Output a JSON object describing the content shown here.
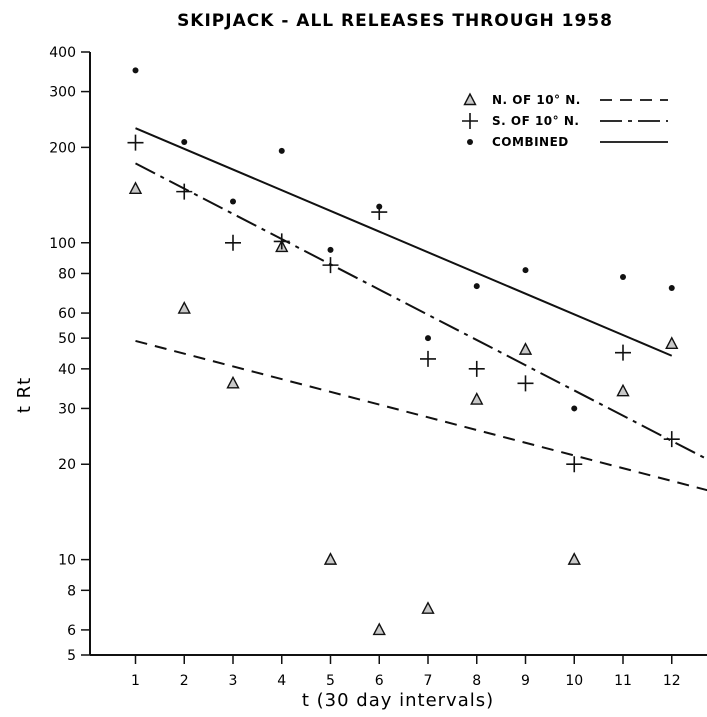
{
  "chart_data": {
    "type": "scatter",
    "title": "SKIPJACK - ALL RELEASES THROUGH 1958",
    "xlabel": "t (30 day intervals)",
    "ylabel": "t Rt",
    "xlim": [
      0,
      13.4
    ],
    "ylim": [
      5,
      400
    ],
    "y_scale": "log",
    "x_ticks": [
      1,
      2,
      3,
      4,
      5,
      6,
      7,
      8,
      9,
      10,
      11,
      12
    ],
    "y_ticks": [
      5,
      6,
      8,
      10,
      20,
      30,
      40,
      50,
      60,
      80,
      100,
      200,
      300,
      400
    ],
    "y_tick_labels": [
      "5",
      "6",
      "8",
      "10",
      "20",
      "30",
      "40",
      "50",
      "60",
      "80",
      "100",
      "200",
      "300",
      "400"
    ],
    "grid": false,
    "legend_position": "top-right",
    "series": [
      {
        "name": "N. OF 10° N.",
        "marker": "triangle",
        "line_style": "dashed",
        "points": [
          [
            1,
            148
          ],
          [
            2,
            62
          ],
          [
            3,
            36
          ],
          [
            4,
            97
          ],
          [
            5,
            10
          ],
          [
            6,
            6
          ],
          [
            7,
            7
          ],
          [
            8,
            32
          ],
          [
            9,
            46
          ],
          [
            10,
            10
          ],
          [
            11,
            34
          ],
          [
            12,
            48
          ]
        ],
        "fit_line": [
          [
            1,
            49
          ],
          [
            13.1,
            16
          ]
        ]
      },
      {
        "name": "S. OF 10° N.",
        "marker": "plus",
        "line_style": "dash-dot",
        "points": [
          [
            1,
            207
          ],
          [
            2,
            145
          ],
          [
            3,
            100
          ],
          [
            4,
            101
          ],
          [
            5,
            85
          ],
          [
            6,
            125
          ],
          [
            7,
            43
          ],
          [
            8,
            40
          ],
          [
            9,
            36
          ],
          [
            10,
            20
          ],
          [
            11,
            45
          ],
          [
            12,
            24
          ]
        ],
        "fit_line": [
          [
            1,
            178
          ],
          [
            13.5,
            18
          ]
        ]
      },
      {
        "name": "COMBINED",
        "marker": "dot",
        "line_style": "solid",
        "points": [
          [
            1,
            350
          ],
          [
            2,
            208
          ],
          [
            3,
            135
          ],
          [
            4,
            195
          ],
          [
            5,
            95
          ],
          [
            6,
            130
          ],
          [
            7,
            50
          ],
          [
            8,
            73
          ],
          [
            9,
            82
          ],
          [
            10,
            30
          ],
          [
            11,
            78
          ],
          [
            12,
            72
          ]
        ],
        "fit_line": [
          [
            1,
            230
          ],
          [
            12,
            44
          ]
        ]
      }
    ]
  }
}
